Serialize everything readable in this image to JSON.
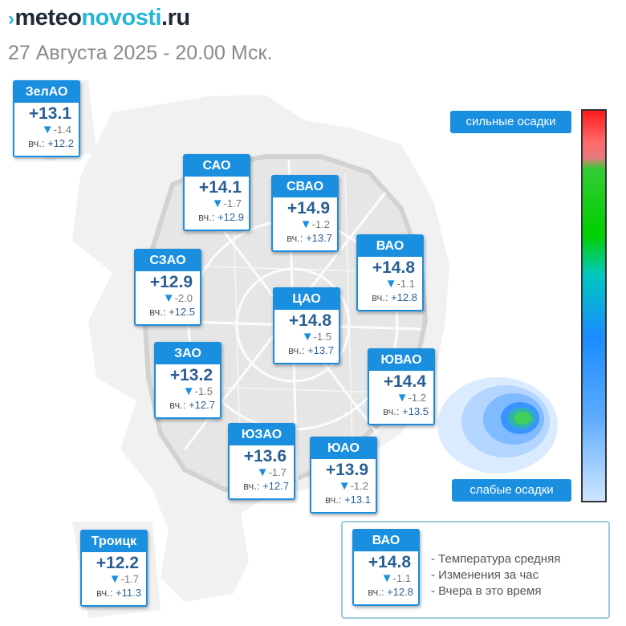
{
  "header": {
    "logo_mark": "›",
    "logo_part1": "meteo",
    "logo_part2": "novosti",
    "logo_part3": ".ru",
    "datetime": "27 Августа 2025 - 20.00 Мск."
  },
  "yesterday_prefix": "вч.:",
  "districts": {
    "zelao": {
      "name": "ЗелАО",
      "temp": "+13.1",
      "change": "-1.4",
      "yesterday": "+12.2"
    },
    "sao": {
      "name": "САО",
      "temp": "+14.1",
      "change": "-1.7",
      "yesterday": "+12.9"
    },
    "svao": {
      "name": "СВАО",
      "temp": "+14.9",
      "change": "-1.2",
      "yesterday": "+13.7"
    },
    "vao": {
      "name": "ВАО",
      "temp": "+14.8",
      "change": "-1.1",
      "yesterday": "+12.8"
    },
    "szao": {
      "name": "СЗАО",
      "temp": "+12.9",
      "change": "-2.0",
      "yesterday": "+12.5"
    },
    "cao": {
      "name": "ЦАО",
      "temp": "+14.8",
      "change": "-1.5",
      "yesterday": "+13.7"
    },
    "zao": {
      "name": "ЗАО",
      "temp": "+13.2",
      "change": "-1.5",
      "yesterday": "+12.7"
    },
    "yuvao": {
      "name": "ЮВАО",
      "temp": "+14.4",
      "change": "-1.2",
      "yesterday": "+13.5"
    },
    "yuzao": {
      "name": "ЮЗАО",
      "temp": "+13.6",
      "change": "-1.7",
      "yesterday": "+12.7"
    },
    "yuao": {
      "name": "ЮАО",
      "temp": "+13.9",
      "change": "-1.2",
      "yesterday": "+13.1"
    },
    "troitsk": {
      "name": "Троицк",
      "temp": "+12.2",
      "change": "-1.7",
      "yesterday": "+11.3"
    }
  },
  "scale": {
    "top_label": "сильные осадки",
    "bottom_label": "слабые осадки"
  },
  "legend": {
    "sample": {
      "name": "ВАО",
      "temp": "+14.8",
      "change": "-1.1",
      "yesterday": "+12.8"
    },
    "line_temp": "- Температура средняя",
    "line_change": "- Изменения за час",
    "line_yesterday": "- Вчера в это время"
  },
  "colors": {
    "card_header": "#1a8fe0",
    "temp_text": "#2a5f93",
    "logo_accent": "#27b5d6"
  },
  "icons": {
    "change_arrow": "down-triangle-icon"
  }
}
